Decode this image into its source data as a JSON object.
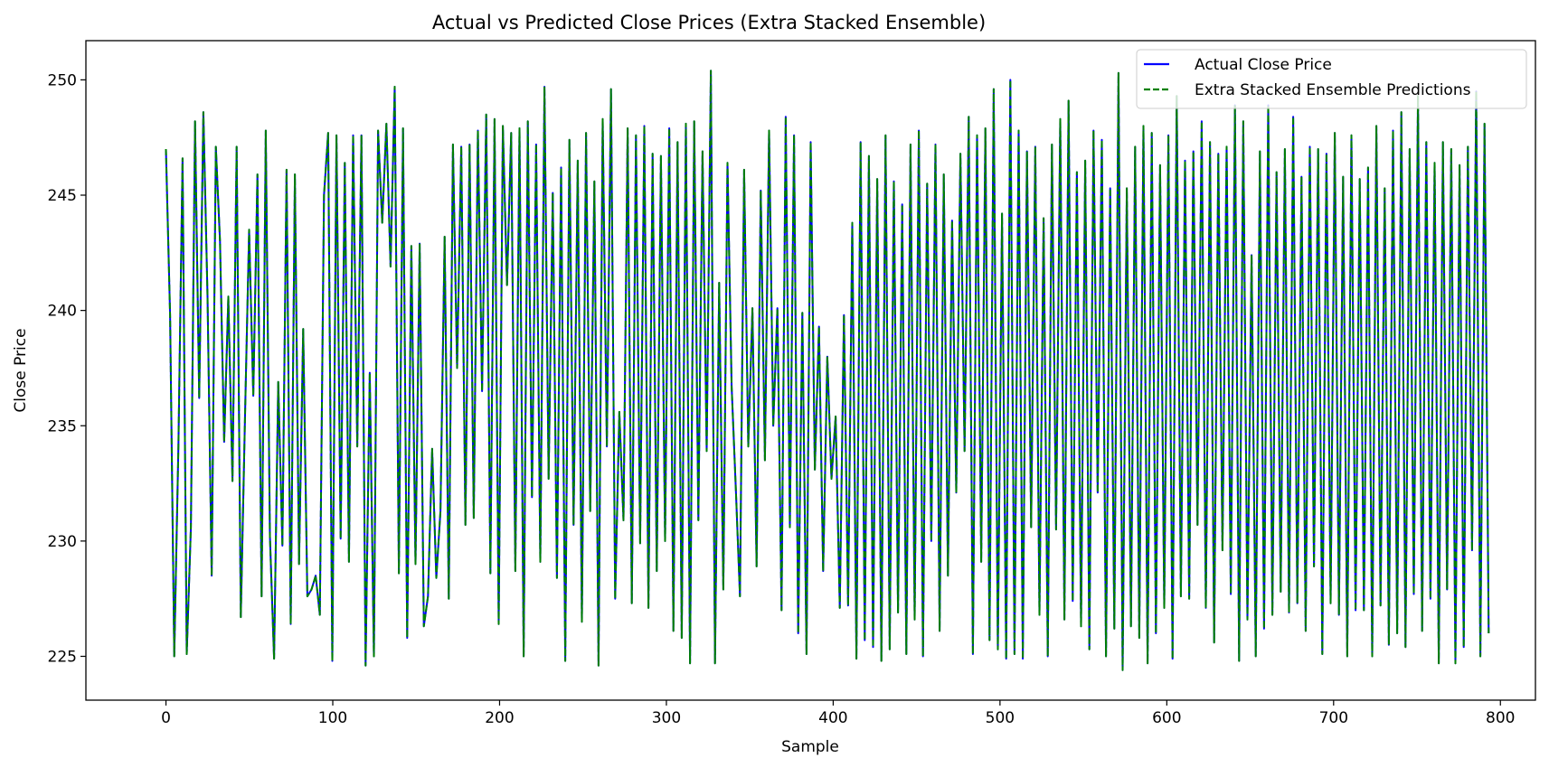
{
  "chart_data": {
    "type": "line",
    "title": "Actual vs Predicted Close Prices (Extra Stacked Ensemble)",
    "xlabel": "Sample",
    "ylabel": "Close Price",
    "xlim": [
      -48,
      821
    ],
    "ylim": [
      223.1,
      251.7
    ],
    "xticks": [
      0,
      100,
      200,
      300,
      400,
      500,
      600,
      700,
      800
    ],
    "yticks": [
      225,
      230,
      235,
      240,
      245,
      250
    ],
    "grid": false,
    "legend_position": "top-right",
    "x_range": [
      0,
      793
    ],
    "series": [
      {
        "name": "Actual Close Price",
        "color": "#0000ff",
        "style": "solid",
        "values": [
          247.0,
          239.8,
          225.0,
          234.1,
          246.6,
          225.1,
          230.6,
          248.2,
          236.2,
          248.6,
          240.6,
          228.5,
          247.1,
          243.0,
          234.3,
          240.6,
          232.6,
          247.1,
          226.7,
          235.3,
          243.5,
          236.3,
          245.9,
          227.6,
          247.8,
          230.2,
          224.9,
          236.9,
          229.8,
          246.1,
          226.4,
          245.9,
          229.0,
          239.2,
          227.6,
          227.9,
          228.5,
          226.8,
          245.0,
          247.7,
          224.8,
          247.6,
          230.1,
          246.4,
          229.1,
          247.6,
          234.1,
          247.6,
          224.6,
          237.3,
          225.0,
          247.8,
          243.8,
          248.1,
          241.9,
          249.7,
          228.6,
          247.9,
          225.8,
          242.8,
          229.0,
          242.9,
          226.3,
          227.6,
          234.0,
          228.4,
          231.3,
          243.2,
          227.5,
          247.2,
          237.5,
          247.1,
          230.7,
          247.2,
          231.0,
          247.8,
          236.5,
          248.5,
          228.6,
          248.3,
          226.4,
          248.0,
          241.1,
          247.7,
          228.7,
          247.9,
          225.0,
          248.2,
          231.9,
          247.2,
          229.1,
          249.7,
          232.7,
          245.1,
          228.4,
          246.2,
          224.8,
          247.4,
          230.7,
          246.5,
          226.5,
          247.7,
          231.3,
          245.6,
          224.6,
          248.3,
          234.1,
          249.6,
          227.5,
          235.6,
          230.9,
          247.9,
          227.3,
          247.6,
          229.9,
          248.0,
          227.1,
          246.8,
          228.7,
          246.7,
          230.0,
          247.9,
          226.1,
          247.3,
          225.8,
          248.1,
          224.7,
          248.2,
          230.9,
          246.9,
          233.9,
          250.4,
          224.7,
          241.2,
          227.9,
          246.4,
          236.7,
          232.3,
          227.6,
          246.1,
          234.1,
          240.1,
          228.9,
          245.2,
          233.5,
          247.8,
          235.0,
          240.1,
          227.0,
          248.4,
          230.6,
          247.6,
          226.0,
          239.9,
          225.1,
          247.3,
          233.1,
          239.3,
          228.7,
          238.0,
          232.7,
          235.4,
          227.1,
          239.8,
          227.2,
          243.8,
          224.9,
          247.3,
          225.7,
          246.7,
          225.4,
          245.7,
          224.8,
          247.6,
          225.3,
          245.6,
          226.9,
          244.6,
          225.1,
          247.2,
          226.6,
          247.8,
          225.0,
          245.5,
          230.0,
          247.2,
          226.1,
          245.9,
          228.5,
          243.9,
          232.1,
          246.8,
          233.9,
          248.4,
          225.1,
          247.6,
          229.1,
          247.9,
          225.7,
          249.6,
          225.3,
          244.2,
          224.9,
          250.0,
          225.1,
          247.8,
          224.9,
          246.9,
          230.6,
          247.1,
          226.8,
          244.0,
          225.0,
          247.2,
          230.5,
          248.3,
          226.6,
          249.1,
          227.4,
          246.0,
          226.3,
          246.5,
          225.3,
          247.8,
          232.1,
          247.4,
          225.0,
          245.3,
          226.2,
          250.3,
          224.4,
          245.3,
          226.3,
          247.1,
          225.8,
          248.0,
          224.7,
          247.7,
          226.0,
          246.3,
          227.1,
          247.6,
          224.9,
          249.3,
          227.6,
          246.5,
          227.5,
          246.9,
          230.7,
          248.2,
          227.1,
          247.3,
          225.6,
          246.8,
          229.6,
          247.1,
          227.7,
          248.9,
          224.8,
          248.2,
          226.6,
          242.4,
          225.0,
          246.9,
          226.2,
          248.9,
          226.8,
          246.0,
          227.8,
          247.0,
          226.9,
          248.4,
          227.3,
          245.8,
          226.1,
          247.1,
          228.9,
          247.0,
          225.1,
          246.8,
          227.3,
          247.7,
          226.8,
          245.8,
          225.0,
          247.6,
          227.0,
          245.7,
          227.0,
          246.2,
          225.0,
          248.0,
          227.2,
          245.3,
          225.5,
          247.8,
          226.0,
          248.6,
          225.4,
          247.0,
          227.7,
          249.3,
          226.1,
          247.3,
          227.5,
          246.4,
          224.7,
          247.3,
          227.9,
          247.0,
          224.7,
          246.3,
          225.4,
          247.1,
          229.6,
          249.5,
          225.0,
          248.1,
          226.0
        ],
        "points": 794,
        "note_hidden": ""
      },
      {
        "name": "Extra Stacked Ensemble Predictions",
        "color": "#008000",
        "style": "dashed",
        "values": [
          247.0,
          239.8,
          225.0,
          234.1,
          246.6,
          225.1,
          230.6,
          248.2,
          236.2,
          248.6,
          240.6,
          228.5,
          247.1,
          243.0,
          234.3,
          240.6,
          232.6,
          247.1,
          226.7,
          235.3,
          243.5,
          236.3,
          245.9,
          227.6,
          247.8,
          230.2,
          224.9,
          236.9,
          229.8,
          246.1,
          226.4,
          245.9,
          229.0,
          239.2,
          227.6,
          227.9,
          228.5,
          226.8,
          245.0,
          247.7,
          224.8,
          247.6,
          230.1,
          246.4,
          229.1,
          247.6,
          234.1,
          247.6,
          224.6,
          237.3,
          225.0,
          247.8,
          243.8,
          248.1,
          241.9,
          249.7,
          228.6,
          247.9,
          225.8,
          242.8,
          229.0,
          242.9,
          226.3,
          227.6,
          234.0,
          228.4,
          231.3,
          243.2,
          227.5,
          247.2,
          237.5,
          247.1,
          230.7,
          247.2,
          231.0,
          247.8,
          236.5,
          248.5,
          228.6,
          248.3,
          226.4,
          248.0,
          241.1,
          247.7,
          228.7,
          247.9,
          225.0,
          248.2,
          231.9,
          247.2,
          229.1,
          249.7,
          232.7,
          245.1,
          228.4,
          246.2,
          224.8,
          247.4,
          230.7,
          246.5,
          226.5,
          247.7,
          231.3,
          245.6,
          224.6,
          248.3,
          234.1,
          249.6,
          227.5,
          235.6,
          230.9,
          247.9,
          227.3,
          247.6,
          229.9,
          248.0,
          227.1,
          246.8,
          228.7,
          246.7,
          230.0,
          247.9,
          226.1,
          247.3,
          225.8,
          248.1,
          224.7,
          248.2,
          230.9,
          246.9,
          233.9,
          250.4,
          224.7,
          241.2,
          227.9,
          246.4,
          236.7,
          232.3,
          227.6,
          246.1,
          234.1,
          240.1,
          228.9,
          245.2,
          233.5,
          247.8,
          235.0,
          240.1,
          227.0,
          248.4,
          230.6,
          247.6,
          226.0,
          239.9,
          225.1,
          247.3,
          233.1,
          239.3,
          228.7,
          238.0,
          232.7,
          235.4,
          227.1,
          239.8,
          227.2,
          243.8,
          224.9,
          247.3,
          225.7,
          246.7,
          225.4,
          245.7,
          224.8,
          247.6,
          225.3,
          245.6,
          226.9,
          244.6,
          225.1,
          247.2,
          226.6,
          247.8,
          225.0,
          245.5,
          230.0,
          247.2,
          226.1,
          245.9,
          228.5,
          243.9,
          232.1,
          246.8,
          233.9,
          248.4,
          225.1,
          247.6,
          229.1,
          247.9,
          225.7,
          249.6,
          225.3,
          244.2,
          224.9,
          250.0,
          225.1,
          247.8,
          224.9,
          246.9,
          230.6,
          247.1,
          226.8,
          244.0,
          225.0,
          247.2,
          230.5,
          248.3,
          226.6,
          249.1,
          227.4,
          246.0,
          226.3,
          246.5,
          225.3,
          247.8,
          232.1,
          247.4,
          225.0,
          245.3,
          226.2,
          250.3,
          224.4,
          245.3,
          226.3,
          247.1,
          225.8,
          248.0,
          224.7,
          247.7,
          226.0,
          246.3,
          227.1,
          247.6,
          224.9,
          249.3,
          227.6,
          246.5,
          227.5,
          246.9,
          230.7,
          248.2,
          227.1,
          247.3,
          225.6,
          246.8,
          229.6,
          247.1,
          227.7,
          248.9,
          224.8,
          248.2,
          226.6,
          242.4,
          225.0,
          246.9,
          226.2,
          248.9,
          226.8,
          246.0,
          227.8,
          247.0,
          226.9,
          248.4,
          227.3,
          245.8,
          226.1,
          247.1,
          228.9,
          247.0,
          225.1,
          246.8,
          227.3,
          247.7,
          226.8,
          245.8,
          225.0,
          247.6,
          227.0,
          245.7,
          227.0,
          246.2,
          225.0,
          248.0,
          227.2,
          245.3,
          225.5,
          247.8,
          226.0,
          248.6,
          225.4,
          247.0,
          227.7,
          249.3,
          226.1,
          247.3,
          227.5,
          246.4,
          224.7,
          247.3,
          227.9,
          247.0,
          224.7,
          246.3,
          225.4,
          247.1,
          229.6,
          249.5,
          225.0,
          248.1,
          226.0
        ],
        "points": 794
      }
    ]
  }
}
